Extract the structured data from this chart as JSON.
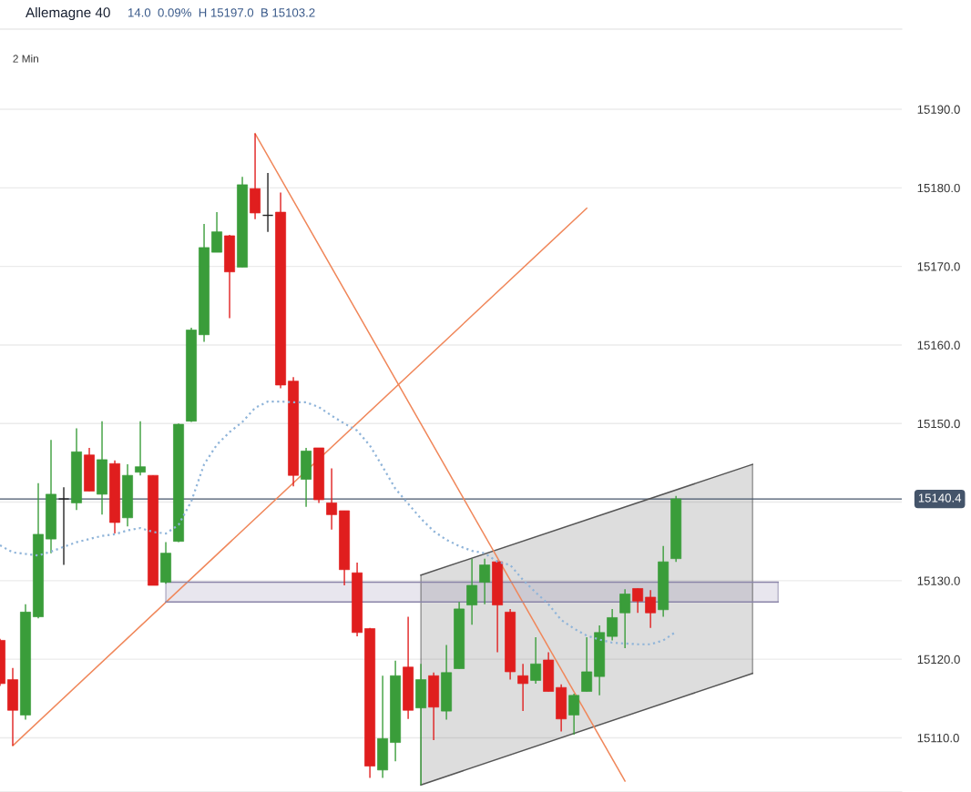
{
  "chart_data": {
    "type": "candlestick",
    "title": "Allemagne 40",
    "subtitle": "14.0  0.09%  H 15197.0  B 15103.2",
    "annotations": [
      "2 Min"
    ],
    "categories": [
      null,
      null,
      null,
      null,
      null,
      null,
      null,
      null,
      null,
      null,
      null,
      null,
      null,
      null,
      null,
      null,
      null,
      null,
      null,
      null,
      null,
      null,
      null,
      null,
      null,
      null,
      null,
      null,
      null,
      null,
      null,
      null,
      null,
      null,
      null,
      null,
      null,
      null,
      null,
      null,
      null,
      null,
      null,
      null,
      null,
      null,
      null,
      null,
      null,
      null,
      null,
      null,
      null,
      null,
      null,
      null,
      null,
      null,
      null,
      null,
      null,
      null,
      null,
      null,
      null,
      null,
      null,
      null,
      null,
      null,
      null
    ],
    "ohlc": [
      [
        15122.4,
        15122.6,
        15116.6,
        15116.9
      ],
      [
        15117.4,
        15118.9,
        15109.0,
        15113.5
      ],
      [
        15112.9,
        15127.0,
        15112.3,
        15126.0
      ],
      [
        15125.4,
        15142.4,
        15125.2,
        15135.9
      ],
      [
        15135.3,
        15147.9,
        15133.5,
        15141.0
      ],
      [
        15140.4,
        15141.9,
        15132.0,
        15140.4
      ],
      [
        15139.9,
        15149.4,
        15139.0,
        15146.4
      ],
      [
        15146.0,
        15146.9,
        15141.4,
        15141.4
      ],
      [
        15141.0,
        15150.3,
        15138.4,
        15145.4
      ],
      [
        15144.9,
        15145.3,
        15136.0,
        15137.4
      ],
      [
        15138.0,
        15144.8,
        15136.9,
        15143.4
      ],
      [
        15143.8,
        15150.3,
        15143.4,
        15144.5
      ],
      [
        15143.4,
        15143.4,
        15129.4,
        15129.4
      ],
      [
        15129.8,
        15134.9,
        15129.6,
        15133.5
      ],
      [
        15135.0,
        15150.0,
        15134.9,
        15149.9
      ],
      [
        15150.3,
        15162.2,
        15150.2,
        15161.9
      ],
      [
        15161.3,
        15175.4,
        15160.4,
        15172.4
      ],
      [
        15171.8,
        15176.9,
        15171.8,
        15174.4
      ],
      [
        15173.9,
        15174.0,
        15163.4,
        15169.3
      ],
      [
        15169.9,
        15181.4,
        15169.9,
        15180.4
      ],
      [
        15179.9,
        15186.9,
        15176.0,
        15176.8
      ],
      [
        15176.5,
        15181.9,
        15174.4,
        15176.5
      ],
      [
        15176.9,
        15179.4,
        15154.5,
        15154.9
      ],
      [
        15155.4,
        15155.9,
        15142.0,
        15143.4
      ],
      [
        15142.9,
        15146.9,
        15139.4,
        15146.5
      ],
      [
        15146.9,
        15146.9,
        15139.9,
        15140.3
      ],
      [
        15139.9,
        15144.3,
        15136.5,
        15138.4
      ],
      [
        15138.9,
        15138.9,
        15129.4,
        15131.4
      ],
      [
        15131.0,
        15132.3,
        15122.9,
        15123.4
      ],
      [
        15123.9,
        15124.0,
        15104.9,
        15106.4
      ],
      [
        15105.9,
        15117.9,
        15104.9,
        15109.9
      ],
      [
        15109.4,
        15119.8,
        15107.0,
        15117.9
      ],
      [
        15119.0,
        15125.4,
        15112.4,
        15113.5
      ],
      [
        15113.8,
        15119.4,
        15104.0,
        15117.4
      ],
      [
        15117.9,
        15118.3,
        15109.7,
        15113.9
      ],
      [
        15113.4,
        15121.8,
        15112.3,
        15118.3
      ],
      [
        15118.8,
        15127.3,
        15118.8,
        15126.4
      ],
      [
        15126.9,
        15132.8,
        15124.4,
        15129.4
      ],
      [
        15129.8,
        15132.8,
        15127.0,
        15132.0
      ],
      [
        15132.4,
        15132.6,
        15120.9,
        15126.9
      ],
      [
        15126.0,
        15126.4,
        15117.4,
        15118.4
      ],
      [
        15117.9,
        15119.4,
        15113.4,
        15116.9
      ],
      [
        15117.3,
        15122.8,
        15116.9,
        15119.4
      ],
      [
        15119.9,
        15120.9,
        15115.9,
        15115.9
      ],
      [
        15116.4,
        15116.8,
        15110.8,
        15112.4
      ],
      [
        15112.9,
        15115.6,
        15110.4,
        15115.4
      ],
      [
        15115.9,
        15122.8,
        15115.9,
        15118.4
      ],
      [
        15117.8,
        15124.3,
        15115.4,
        15123.4
      ],
      [
        15122.9,
        15126.4,
        15122.4,
        15125.3
      ],
      [
        15125.9,
        15128.9,
        15121.4,
        15128.3
      ],
      [
        15129.0,
        15129.0,
        15125.9,
        15127.4
      ],
      [
        15127.9,
        15128.8,
        15124.0,
        15125.9
      ],
      [
        15126.3,
        15134.4,
        15125.4,
        15132.4
      ],
      [
        15132.8,
        15140.8,
        15132.4,
        15140.4
      ],
      null,
      null,
      null,
      null,
      null,
      null,
      null,
      null,
      null,
      null,
      null,
      null,
      null,
      null,
      null,
      null,
      null
    ],
    "series": [
      {
        "type": "line",
        "color": "#8fb4d9",
        "line_style": "dotted",
        "values": [
          15134.5,
          15133.6,
          15133.4,
          15133.2,
          15133.7,
          15134.3,
          15134.9,
          15135.3,
          15135.7,
          15135.9,
          15136.4,
          15136.7,
          15136.2,
          15136.0,
          15137.1,
          15140.1,
          15144.8,
          15147.3,
          15148.9,
          15150.2,
          15152.0,
          15152.8,
          15152.8,
          15152.7,
          15152.7,
          15152.1,
          15151.0,
          15150.0,
          15149.1,
          15147.2,
          15144.5,
          15141.7,
          15139.8,
          15137.9,
          15136.3,
          15135.2,
          15134.4,
          15133.8,
          15133.5,
          15132.4,
          15132.0,
          15130.1,
          15128.5,
          15127.0,
          15125.0,
          15123.9,
          15123.0,
          15122.5,
          15122.1,
          15122.0,
          15121.9,
          15121.9,
          15122.4,
          15123.5,
          null,
          null,
          null,
          null,
          null,
          null,
          null,
          null,
          null,
          null,
          null,
          null,
          null,
          null,
          null,
          null,
          null
        ]
      },
      {
        "type": "line",
        "color": "#f0875a",
        "values": [
          null,
          15109.0,
          null,
          null,
          null,
          null,
          null,
          null,
          null,
          null,
          null,
          null,
          null,
          null,
          null,
          null,
          null,
          null,
          null,
          null,
          null,
          null,
          null,
          null,
          null,
          null,
          null,
          null,
          null,
          null,
          null,
          null,
          null,
          null,
          null,
          null,
          null,
          null,
          null,
          null,
          null,
          null,
          null,
          null,
          null,
          null,
          15177.4,
          null,
          null,
          null,
          null,
          null,
          null,
          null,
          null,
          null,
          null,
          null,
          null,
          null,
          null,
          null,
          null,
          null,
          null,
          null,
          null,
          null,
          null,
          null,
          null
        ]
      },
      {
        "type": "line",
        "color": "#555555",
        "values": [
          null,
          null,
          null,
          null,
          null,
          null,
          null,
          null,
          null,
          null,
          null,
          null,
          null,
          null,
          null,
          null,
          null,
          null,
          null,
          null,
          null,
          null,
          null,
          null,
          null,
          null,
          null,
          null,
          null,
          null,
          null,
          null,
          null,
          15130.7,
          null,
          null,
          null,
          null,
          null,
          null,
          null,
          null,
          null,
          null,
          null,
          null,
          null,
          null,
          null,
          null,
          null,
          null,
          null,
          null,
          null,
          null,
          null,
          null,
          null,
          15144.8,
          null,
          null,
          null,
          null,
          null,
          null,
          null,
          null,
          null,
          null,
          null
        ]
      },
      {
        "type": "line",
        "color": "#555555",
        "values": [
          null,
          null,
          null,
          null,
          null,
          null,
          null,
          null,
          null,
          null,
          null,
          null,
          null,
          null,
          null,
          null,
          null,
          null,
          null,
          null,
          null,
          null,
          null,
          null,
          null,
          null,
          null,
          null,
          null,
          null,
          null,
          null,
          null,
          15104.0,
          null,
          null,
          null,
          null,
          null,
          null,
          null,
          null,
          null,
          null,
          null,
          null,
          null,
          null,
          null,
          null,
          null,
          null,
          null,
          null,
          null,
          null,
          null,
          null,
          null,
          15118.2,
          null,
          null,
          null,
          null,
          null,
          null,
          null,
          null,
          null,
          null,
          null
        ]
      },
      {
        "type": "line",
        "color": "#f0875a",
        "values": [
          null,
          null,
          null,
          null,
          null,
          null,
          null,
          null,
          null,
          null,
          null,
          null,
          null,
          null,
          null,
          null,
          null,
          null,
          null,
          null,
          15186.9,
          null,
          null,
          null,
          null,
          null,
          null,
          null,
          null,
          null,
          null,
          null,
          null,
          null,
          null,
          null,
          null,
          null,
          null,
          null,
          null,
          null,
          null,
          null,
          null,
          null,
          null,
          null,
          null,
          15104.5,
          null,
          null,
          null,
          null,
          null,
          null,
          null,
          null,
          null,
          null,
          null,
          null,
          null,
          null,
          null,
          null,
          null,
          null,
          null,
          null,
          null
        ]
      },
      {
        "type": "line",
        "color": "#8a84a8",
        "values": [
          null,
          null,
          null,
          null,
          null,
          null,
          null,
          null,
          null,
          null,
          null,
          null,
          null,
          15129.8,
          null,
          null,
          null,
          null,
          null,
          null,
          null,
          null,
          null,
          null,
          null,
          null,
          null,
          null,
          null,
          null,
          null,
          null,
          null,
          null,
          null,
          null,
          null,
          null,
          null,
          null,
          null,
          null,
          null,
          null,
          null,
          null,
          null,
          null,
          null,
          null,
          null,
          null,
          null,
          null,
          null,
          null,
          null,
          null,
          null,
          null,
          null,
          15129.8,
          null,
          null,
          null,
          null,
          null,
          null,
          null,
          null,
          null
        ]
      },
      {
        "type": "line",
        "color": "#8a84a8",
        "values": [
          null,
          null,
          null,
          null,
          null,
          null,
          null,
          null,
          null,
          null,
          null,
          null,
          null,
          15127.3,
          null,
          null,
          null,
          null,
          null,
          null,
          null,
          null,
          null,
          null,
          null,
          null,
          null,
          null,
          null,
          null,
          null,
          null,
          null,
          null,
          null,
          null,
          null,
          null,
          null,
          null,
          null,
          null,
          null,
          null,
          null,
          null,
          null,
          null,
          null,
          null,
          null,
          null,
          null,
          null,
          null,
          null,
          null,
          null,
          null,
          null,
          null,
          15127.3,
          null,
          null,
          null,
          null,
          null,
          null,
          null,
          null,
          null
        ]
      }
    ],
    "ref_lines": [
      {
        "axis": "y",
        "value": 15140.4,
        "label": "15140.4",
        "color": "#44546a"
      }
    ],
    "ylim": [
      15103.1,
      15200.2
    ],
    "yticks": [
      {
        "value": 15110,
        "label": "15110.0"
      },
      {
        "value": 15120,
        "label": "15120.0"
      },
      {
        "value": 15130,
        "label": "15130.0"
      },
      {
        "value": 15140,
        "label": null
      },
      {
        "value": 15150,
        "label": "15150.0"
      },
      {
        "value": 15160,
        "label": "15160.0"
      },
      {
        "value": 15170,
        "label": "15170.0"
      },
      {
        "value": 15180,
        "label": "15180.0"
      },
      {
        "value": 15190,
        "label": "15190.0"
      }
    ],
    "tick_labels": "y",
    "grid": "y",
    "legend": false
  }
}
